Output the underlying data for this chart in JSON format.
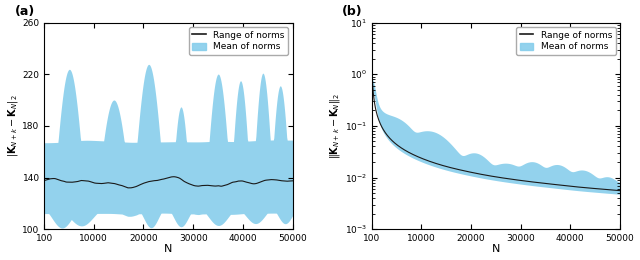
{
  "fig_width": 6.4,
  "fig_height": 2.6,
  "dpi": 100,
  "panel_a": {
    "label": "(a)",
    "xlim": [
      100,
      50000
    ],
    "ylim": [
      100,
      260
    ],
    "yticks": [
      100,
      140,
      180,
      220,
      260
    ],
    "xticks": [
      100,
      10000,
      20000,
      30000,
      40000,
      50000
    ],
    "xticklabels": [
      "100",
      "10000",
      "20000",
      "30000",
      "40000",
      "50000"
    ],
    "xlabel": "N",
    "ylabel": "||K_{N+k} - K_N||_2",
    "fill_color": "#87CEEB",
    "fill_alpha": 0.9,
    "line_color": "#1a1a1a",
    "line_width": 0.8,
    "legend_labels": [
      "Range of norms",
      "Mean of norms"
    ]
  },
  "panel_b": {
    "label": "(b)",
    "xlim": [
      100,
      50000
    ],
    "ylim": [
      0.001,
      10
    ],
    "xticks": [
      100,
      10000,
      20000,
      30000,
      40000,
      50000
    ],
    "xticklabels": [
      "100",
      "10000",
      "20000",
      "30000",
      "40000",
      "50000"
    ],
    "xlabel": "N",
    "ylabel": "||K_{N+k} - K_N||_2",
    "fill_color": "#87CEEB",
    "fill_alpha": 0.9,
    "line_color": "#1a1a1a",
    "line_width": 0.8,
    "legend_labels": [
      "Range of norms",
      "Mean of norms"
    ]
  }
}
